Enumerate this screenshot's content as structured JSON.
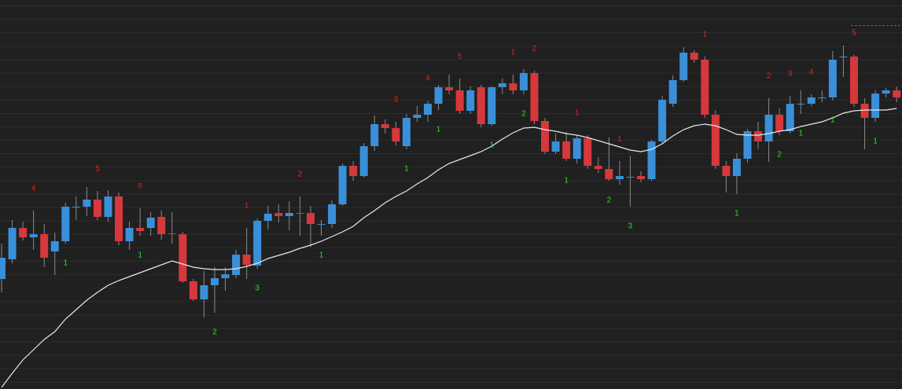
{
  "chart_data": {
    "type": "candlestick",
    "ylim": [
      0,
      495
    ],
    "up_color": "#3a8fd9",
    "down_color": "#d6383d",
    "wick_color": "#8a8a8a",
    "ma_color": "#e8e8e8",
    "top_label_color": "#e3231f",
    "bottom_label_color": "#24e024",
    "open": [
      140,
      165,
      205,
      193,
      197,
      175,
      188,
      231,
      232,
      241,
      219,
      245,
      188,
      205,
      205,
      219,
      198,
      197,
      137,
      114,
      132,
      141,
      145,
      171,
      157,
      214,
      224,
      220,
      224,
      224,
      209,
      210,
      235,
      284,
      271,
      309,
      337,
      332,
      309,
      345,
      349,
      363,
      384,
      380,
      354,
      384,
      337,
      384,
      389,
      380,
      402,
      341,
      302,
      315,
      293,
      319,
      284,
      280,
      267,
      270,
      271,
      267,
      315,
      363,
      393,
      428,
      419,
      349,
      284,
      271,
      293,
      328,
      315,
      349,
      328,
      363,
      363,
      371,
      371,
      423,
      423,
      363,
      345,
      376,
      380
    ],
    "close": [
      167,
      205,
      193,
      197,
      167,
      188,
      232,
      232,
      241,
      219,
      245,
      188,
      205,
      201,
      218,
      197,
      197,
      137,
      114,
      132,
      141,
      146,
      171,
      158,
      214,
      223,
      220,
      224,
      223,
      210,
      210,
      235,
      284,
      271,
      309,
      337,
      332,
      315,
      345,
      349,
      363,
      384,
      380,
      354,
      380,
      337,
      384,
      389,
      380,
      402,
      341,
      302,
      315,
      293,
      319,
      284,
      280,
      267,
      271,
      270,
      267,
      315,
      368,
      393,
      428,
      419,
      349,
      284,
      271,
      293,
      328,
      315,
      349,
      328,
      363,
      363,
      371,
      371,
      419,
      423,
      363,
      345,
      376,
      380,
      371
    ],
    "high": [
      185,
      215,
      213,
      227,
      210,
      199,
      237,
      245,
      257,
      252,
      253,
      250,
      213,
      230,
      225,
      227,
      225,
      200,
      140,
      150,
      155,
      155,
      177,
      205,
      217,
      233,
      235,
      239,
      245,
      233,
      215,
      240,
      287,
      290,
      313,
      348,
      343,
      340,
      350,
      360,
      367,
      387,
      400,
      395,
      385,
      387,
      385,
      395,
      400,
      407,
      405,
      345,
      325,
      327,
      323,
      323,
      295,
      320,
      290,
      297,
      277,
      317,
      373,
      399,
      435,
      431,
      423,
      355,
      290,
      300,
      331,
      340,
      370,
      357,
      373,
      380,
      375,
      380,
      430,
      437,
      425,
      370,
      380,
      383,
      385
    ],
    "low": [
      123,
      160,
      189,
      177,
      155,
      145,
      185,
      215,
      220,
      215,
      213,
      183,
      177,
      195,
      195,
      190,
      185,
      135,
      112,
      91,
      97,
      125,
      141,
      140,
      153,
      203,
      212,
      202,
      195,
      181,
      195,
      205,
      233,
      265,
      269,
      303,
      325,
      310,
      305,
      340,
      340,
      355,
      375,
      350,
      350,
      333,
      335,
      375,
      375,
      375,
      337,
      299,
      299,
      290,
      287,
      280,
      275,
      265,
      260,
      232,
      263,
      265,
      313,
      359,
      391,
      415,
      345,
      280,
      250,
      248,
      288,
      305,
      289,
      323,
      325,
      350,
      360,
      365,
      367,
      397,
      359,
      305,
      340,
      371,
      365
    ],
    "ma": [
      2,
      20,
      37,
      50,
      63,
      73,
      89,
      101,
      113,
      123,
      132,
      138,
      143,
      148,
      153,
      158,
      163,
      159,
      155,
      153,
      152,
      152,
      153,
      156,
      160,
      166,
      170,
      174,
      179,
      183,
      188,
      194,
      200,
      207,
      218,
      227,
      237,
      245,
      252,
      261,
      269,
      279,
      287,
      292,
      297,
      302,
      309,
      318,
      326,
      332,
      333,
      330,
      328,
      325,
      323,
      320,
      316,
      312,
      308,
      304,
      302,
      305,
      312,
      322,
      330,
      335,
      337,
      335,
      330,
      324,
      323,
      323,
      325,
      328,
      330,
      334,
      337,
      340,
      345,
      351,
      354,
      355,
      355,
      355,
      357
    ],
    "top_labels": [
      null,
      null,
      null,
      4,
      null,
      null,
      null,
      null,
      null,
      5,
      null,
      null,
      null,
      6,
      null,
      null,
      null,
      null,
      null,
      null,
      null,
      null,
      null,
      1,
      null,
      null,
      null,
      null,
      2,
      null,
      null,
      null,
      null,
      null,
      null,
      null,
      null,
      3,
      null,
      null,
      4,
      null,
      null,
      5,
      null,
      null,
      null,
      null,
      1,
      null,
      2,
      null,
      null,
      null,
      1,
      null,
      null,
      null,
      1,
      null,
      null,
      null,
      null,
      null,
      null,
      null,
      1,
      null,
      null,
      null,
      null,
      null,
      2,
      null,
      3,
      null,
      4,
      null,
      null,
      null,
      5,
      null,
      null,
      null,
      null
    ],
    "bottom_labels": [
      null,
      null,
      null,
      null,
      null,
      null,
      1,
      null,
      null,
      null,
      null,
      null,
      null,
      1,
      null,
      null,
      null,
      null,
      null,
      null,
      2,
      null,
      null,
      null,
      3,
      null,
      null,
      null,
      null,
      null,
      1,
      null,
      null,
      null,
      null,
      null,
      null,
      null,
      1,
      null,
      null,
      1,
      null,
      null,
      null,
      null,
      1,
      null,
      null,
      2,
      null,
      null,
      null,
      1,
      null,
      null,
      null,
      2,
      null,
      3,
      null,
      null,
      null,
      null,
      null,
      null,
      null,
      null,
      null,
      1,
      null,
      null,
      null,
      2,
      null,
      1,
      null,
      null,
      1,
      null,
      null,
      null,
      1,
      null,
      null
    ]
  }
}
